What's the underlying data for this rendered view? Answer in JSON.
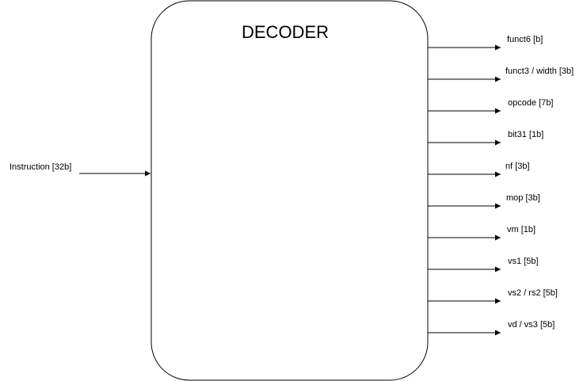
{
  "block": {
    "title": "DECODER"
  },
  "input": {
    "label": "Instruction [32b]"
  },
  "outputs": [
    {
      "label": "funct6 [b]"
    },
    {
      "label": "funct3 / width [3b]"
    },
    {
      "label": "opcode [7b]"
    },
    {
      "label": "bit31 [1b]"
    },
    {
      "label": "nf [3b]"
    },
    {
      "label": "mop [3b]"
    },
    {
      "label": "vm [1b]"
    },
    {
      "label": "vs1 [5b]"
    },
    {
      "label": "vs2 / rs2 [5b]"
    },
    {
      "label": "vd / vs3 [5b]"
    }
  ]
}
